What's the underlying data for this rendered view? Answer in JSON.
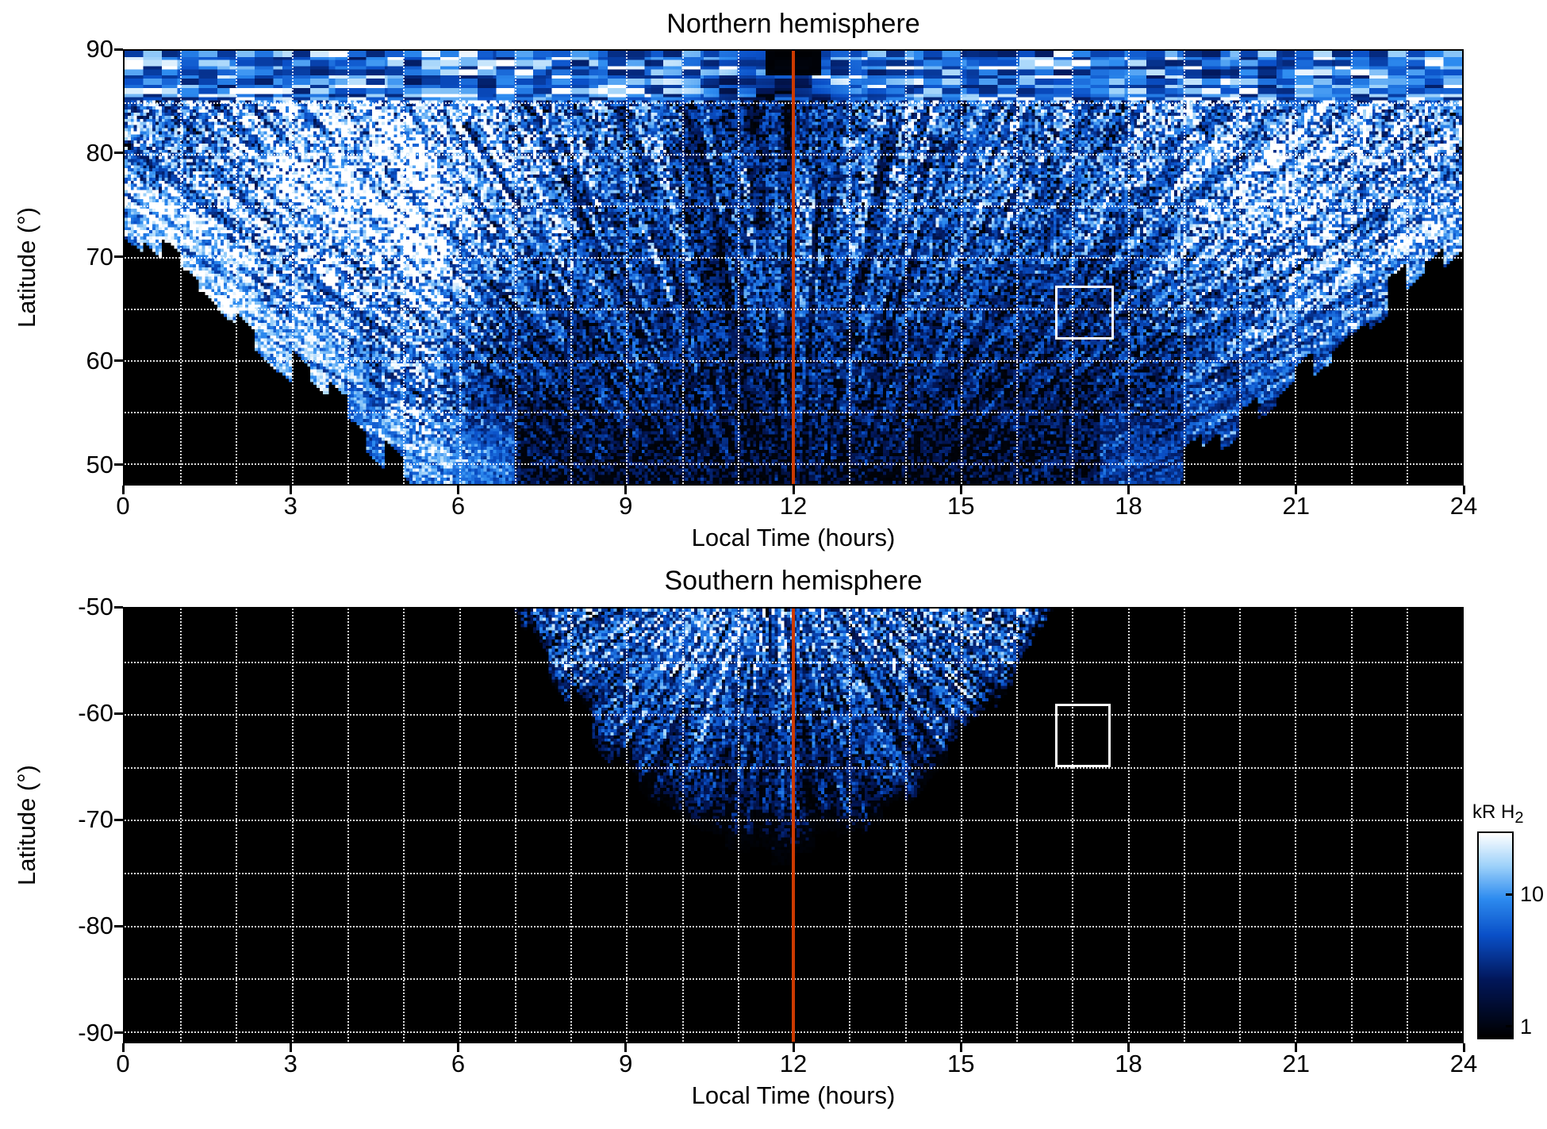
{
  "chart_data": {
    "type": "heatmap",
    "panels": [
      {
        "id": "north",
        "title": "Northern hemisphere",
        "xlabel": "Local Time (hours)",
        "ylabel": "Latitude (°)",
        "x_range": [
          0,
          24
        ],
        "y_range": [
          48,
          90
        ],
        "x_ticks": [
          {
            "v": 0,
            "label": "0"
          },
          {
            "v": 3,
            "label": "3"
          },
          {
            "v": 6,
            "label": "6"
          },
          {
            "v": 9,
            "label": "9"
          },
          {
            "v": 12,
            "label": "12"
          },
          {
            "v": 15,
            "label": "15"
          },
          {
            "v": 18,
            "label": "18"
          },
          {
            "v": 21,
            "label": "21"
          },
          {
            "v": 24,
            "label": "24"
          }
        ],
        "y_ticks": [
          {
            "v": 90,
            "label": "90"
          },
          {
            "v": 80,
            "label": "80"
          },
          {
            "v": 70,
            "label": "70"
          },
          {
            "v": 60,
            "label": "60"
          },
          {
            "v": 50,
            "label": "50"
          }
        ],
        "grid": {
          "x_step": 1,
          "y_step": 5,
          "color": "#ffffff",
          "style": "dotted"
        },
        "noon_line": {
          "x": 12,
          "color": "#cc3a00"
        },
        "highlight_box": {
          "x": [
            16.7,
            17.75
          ],
          "y": [
            62,
            67.2
          ],
          "color": "#ffffff"
        }
      },
      {
        "id": "south",
        "title": "Southern hemisphere",
        "xlabel": "Local Time (hours)",
        "ylabel": "Latitude (°)",
        "x_range": [
          0,
          24
        ],
        "y_range": [
          -91,
          -50
        ],
        "x_ticks": [
          {
            "v": 0,
            "label": "0"
          },
          {
            "v": 3,
            "label": "3"
          },
          {
            "v": 6,
            "label": "6"
          },
          {
            "v": 9,
            "label": "9"
          },
          {
            "v": 12,
            "label": "12"
          },
          {
            "v": 15,
            "label": "15"
          },
          {
            "v": 18,
            "label": "18"
          },
          {
            "v": 21,
            "label": "21"
          },
          {
            "v": 24,
            "label": "24"
          }
        ],
        "y_ticks": [
          {
            "v": -50,
            "label": "-50"
          },
          {
            "v": -60,
            "label": "-60"
          },
          {
            "v": -70,
            "label": "-70"
          },
          {
            "v": -80,
            "label": "-80"
          },
          {
            "v": -90,
            "label": "-90"
          }
        ],
        "grid": {
          "x_step": 1,
          "y_step": 5,
          "color": "#ffffff",
          "style": "dotted"
        },
        "noon_line": {
          "x": 12,
          "color": "#cc3a00"
        },
        "highlight_box": {
          "x": [
            16.7,
            17.7
          ],
          "y": [
            -65,
            -59
          ],
          "color": "#ffffff"
        }
      }
    ],
    "colorbar": {
      "label": "kR H",
      "label_sub": "2",
      "scale": "log",
      "range": [
        0.8,
        30
      ],
      "ticks": [
        {
          "v": 10,
          "label": "10"
        },
        {
          "v": 1,
          "label": "1"
        }
      ],
      "colors": [
        "#000000",
        "#02175a",
        "#0a50c8",
        "#2e8cf0",
        "#9ed2fa",
        "#ffffff"
      ]
    }
  }
}
